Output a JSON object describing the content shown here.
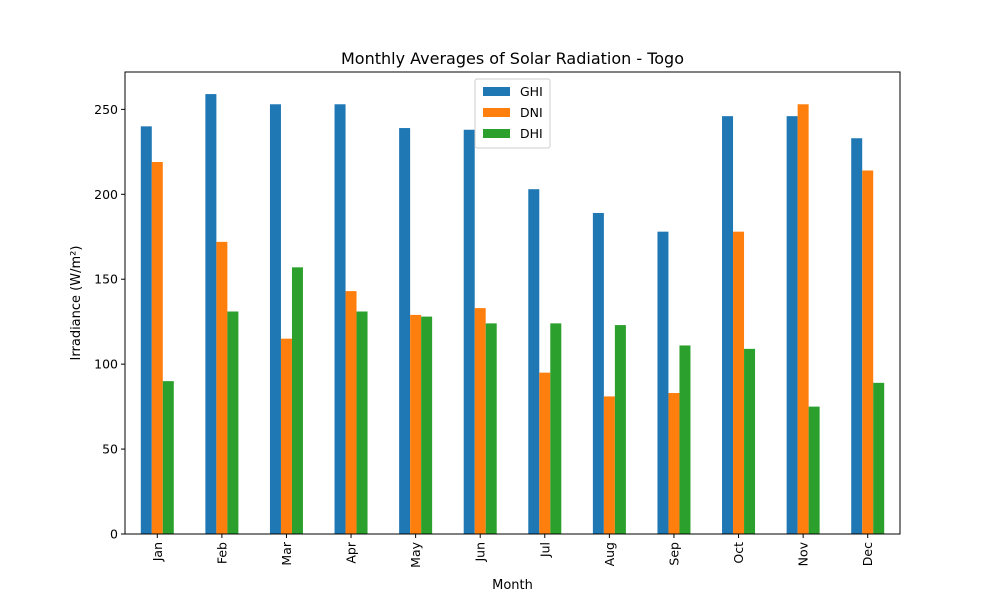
{
  "chart_data": {
    "type": "bar",
    "title": "Monthly Averages of Solar Radiation - Togo",
    "xlabel": "Month",
    "ylabel": "Irradiance (W/m²)",
    "categories": [
      "Jan",
      "Feb",
      "Mar",
      "Apr",
      "May",
      "Jun",
      "Jul",
      "Aug",
      "Sep",
      "Oct",
      "Nov",
      "Dec"
    ],
    "series": [
      {
        "name": "GHI",
        "color": "#1f77b4",
        "values": [
          240,
          259,
          253,
          253,
          239,
          238,
          203,
          189,
          178,
          246,
          246,
          233
        ]
      },
      {
        "name": "DNI",
        "color": "#ff7f0e",
        "values": [
          219,
          172,
          115,
          143,
          129,
          133,
          95,
          81,
          83,
          178,
          253,
          214
        ]
      },
      {
        "name": "DHI",
        "color": "#2ca02c",
        "values": [
          90,
          131,
          157,
          131,
          128,
          124,
          124,
          123,
          111,
          109,
          75,
          89
        ]
      }
    ],
    "ylim": [
      0,
      272
    ],
    "yticks": [
      0,
      50,
      100,
      150,
      200,
      250
    ],
    "grid": false,
    "legend_position": "top-center"
  }
}
